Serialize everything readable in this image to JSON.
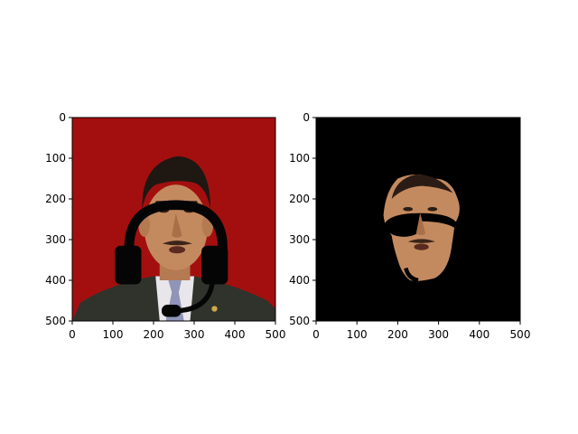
{
  "figure": {
    "panels": [
      {
        "id": "left",
        "image_description": "portrait with headset overlay",
        "image_extent": [
          0,
          500
        ],
        "xticks": [
          "0",
          "100",
          "200",
          "300",
          "400",
          "500"
        ],
        "yticks": [
          "0",
          "100",
          "200",
          "300",
          "400",
          "500"
        ]
      },
      {
        "id": "right",
        "image_description": "masked face region on black background",
        "image_extent": [
          0,
          500
        ],
        "xticks": [
          "0",
          "100",
          "200",
          "300",
          "400",
          "500"
        ],
        "yticks": [
          "0",
          "100",
          "200",
          "300",
          "400",
          "500"
        ]
      }
    ]
  },
  "colors": {
    "background_red": "#a30f0f",
    "suit": "#2f332c",
    "skin": "#c48a5f",
    "hair": "#1f1712",
    "headset": "#050505",
    "mask_bg": "#000000"
  }
}
